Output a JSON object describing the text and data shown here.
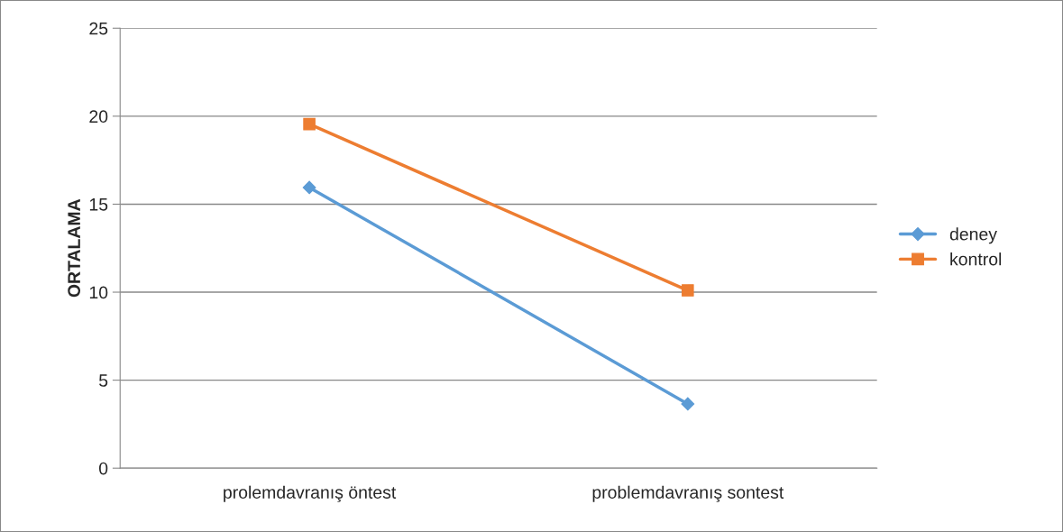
{
  "chart_data": {
    "type": "line",
    "ylabel": "ORTALAMA",
    "categories": [
      "prolemdavranış öntest",
      "problemdavranış sontest"
    ],
    "series": [
      {
        "name": "deney",
        "color": "#5b9bd5",
        "values": [
          15.95,
          3.65
        ],
        "marker": "diamond"
      },
      {
        "name": "kontrol",
        "color": "#ed7d31",
        "values": [
          19.55,
          10.1
        ],
        "marker": "square"
      }
    ],
    "ylim": [
      0,
      25
    ],
    "yticks": [
      0,
      5,
      10,
      15,
      20,
      25
    ],
    "grid": "y",
    "legend": "right",
    "line_style": "solid"
  }
}
